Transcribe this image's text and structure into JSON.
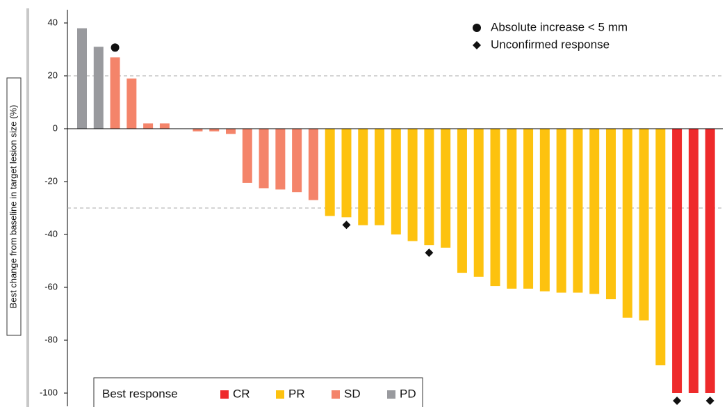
{
  "chart_data": {
    "type": "waterfall",
    "ylabel": "Best change from baseline in target lesion size (%)",
    "ylim": [
      -105,
      45
    ],
    "yticks": [
      40,
      20,
      0,
      -20,
      -40,
      -60,
      -80,
      -100
    ],
    "reference_lines": [
      20,
      -30
    ],
    "values": [
      38,
      31,
      27,
      19,
      2,
      2,
      0,
      -1,
      -1,
      -2,
      -20.5,
      -22.5,
      -23,
      -24,
      -27,
      -33,
      -33.5,
      -36.5,
      -36.5,
      -40,
      -42.5,
      -44,
      -45,
      -54.5,
      -56,
      -59.5,
      -60.5,
      -60.5,
      -61.5,
      -62,
      -62,
      -62.5,
      -64.5,
      -71.5,
      -72.5,
      -89.5,
      -100,
      -100,
      -100
    ],
    "response": [
      "PD",
      "PD",
      "SD",
      "SD",
      "SD",
      "SD",
      "SD",
      "SD",
      "SD",
      "SD",
      "SD",
      "SD",
      "SD",
      "SD",
      "SD",
      "PR",
      "PR",
      "PR",
      "PR",
      "PR",
      "PR",
      "PR",
      "PR",
      "PR",
      "PR",
      "PR",
      "PR",
      "PR",
      "PR",
      "PR",
      "PR",
      "PR",
      "PR",
      "PR",
      "PR",
      "PR",
      "CR",
      "CR",
      "CR"
    ],
    "legend": {
      "title": "Best response",
      "items": [
        {
          "name": "CR",
          "color": "#ee2a2b"
        },
        {
          "name": "PR",
          "color": "#fdc20f"
        },
        {
          "name": "SD",
          "color": "#f4846a"
        },
        {
          "name": "PD",
          "color": "#999a9e"
        }
      ]
    },
    "annotations": [
      {
        "label": "Absolute increase < 5 mm",
        "shape": "circle",
        "bars": [
          2
        ]
      },
      {
        "label": "Unconfirmed response",
        "shape": "diamond",
        "bars": [
          16,
          21,
          36,
          38
        ]
      }
    ]
  }
}
